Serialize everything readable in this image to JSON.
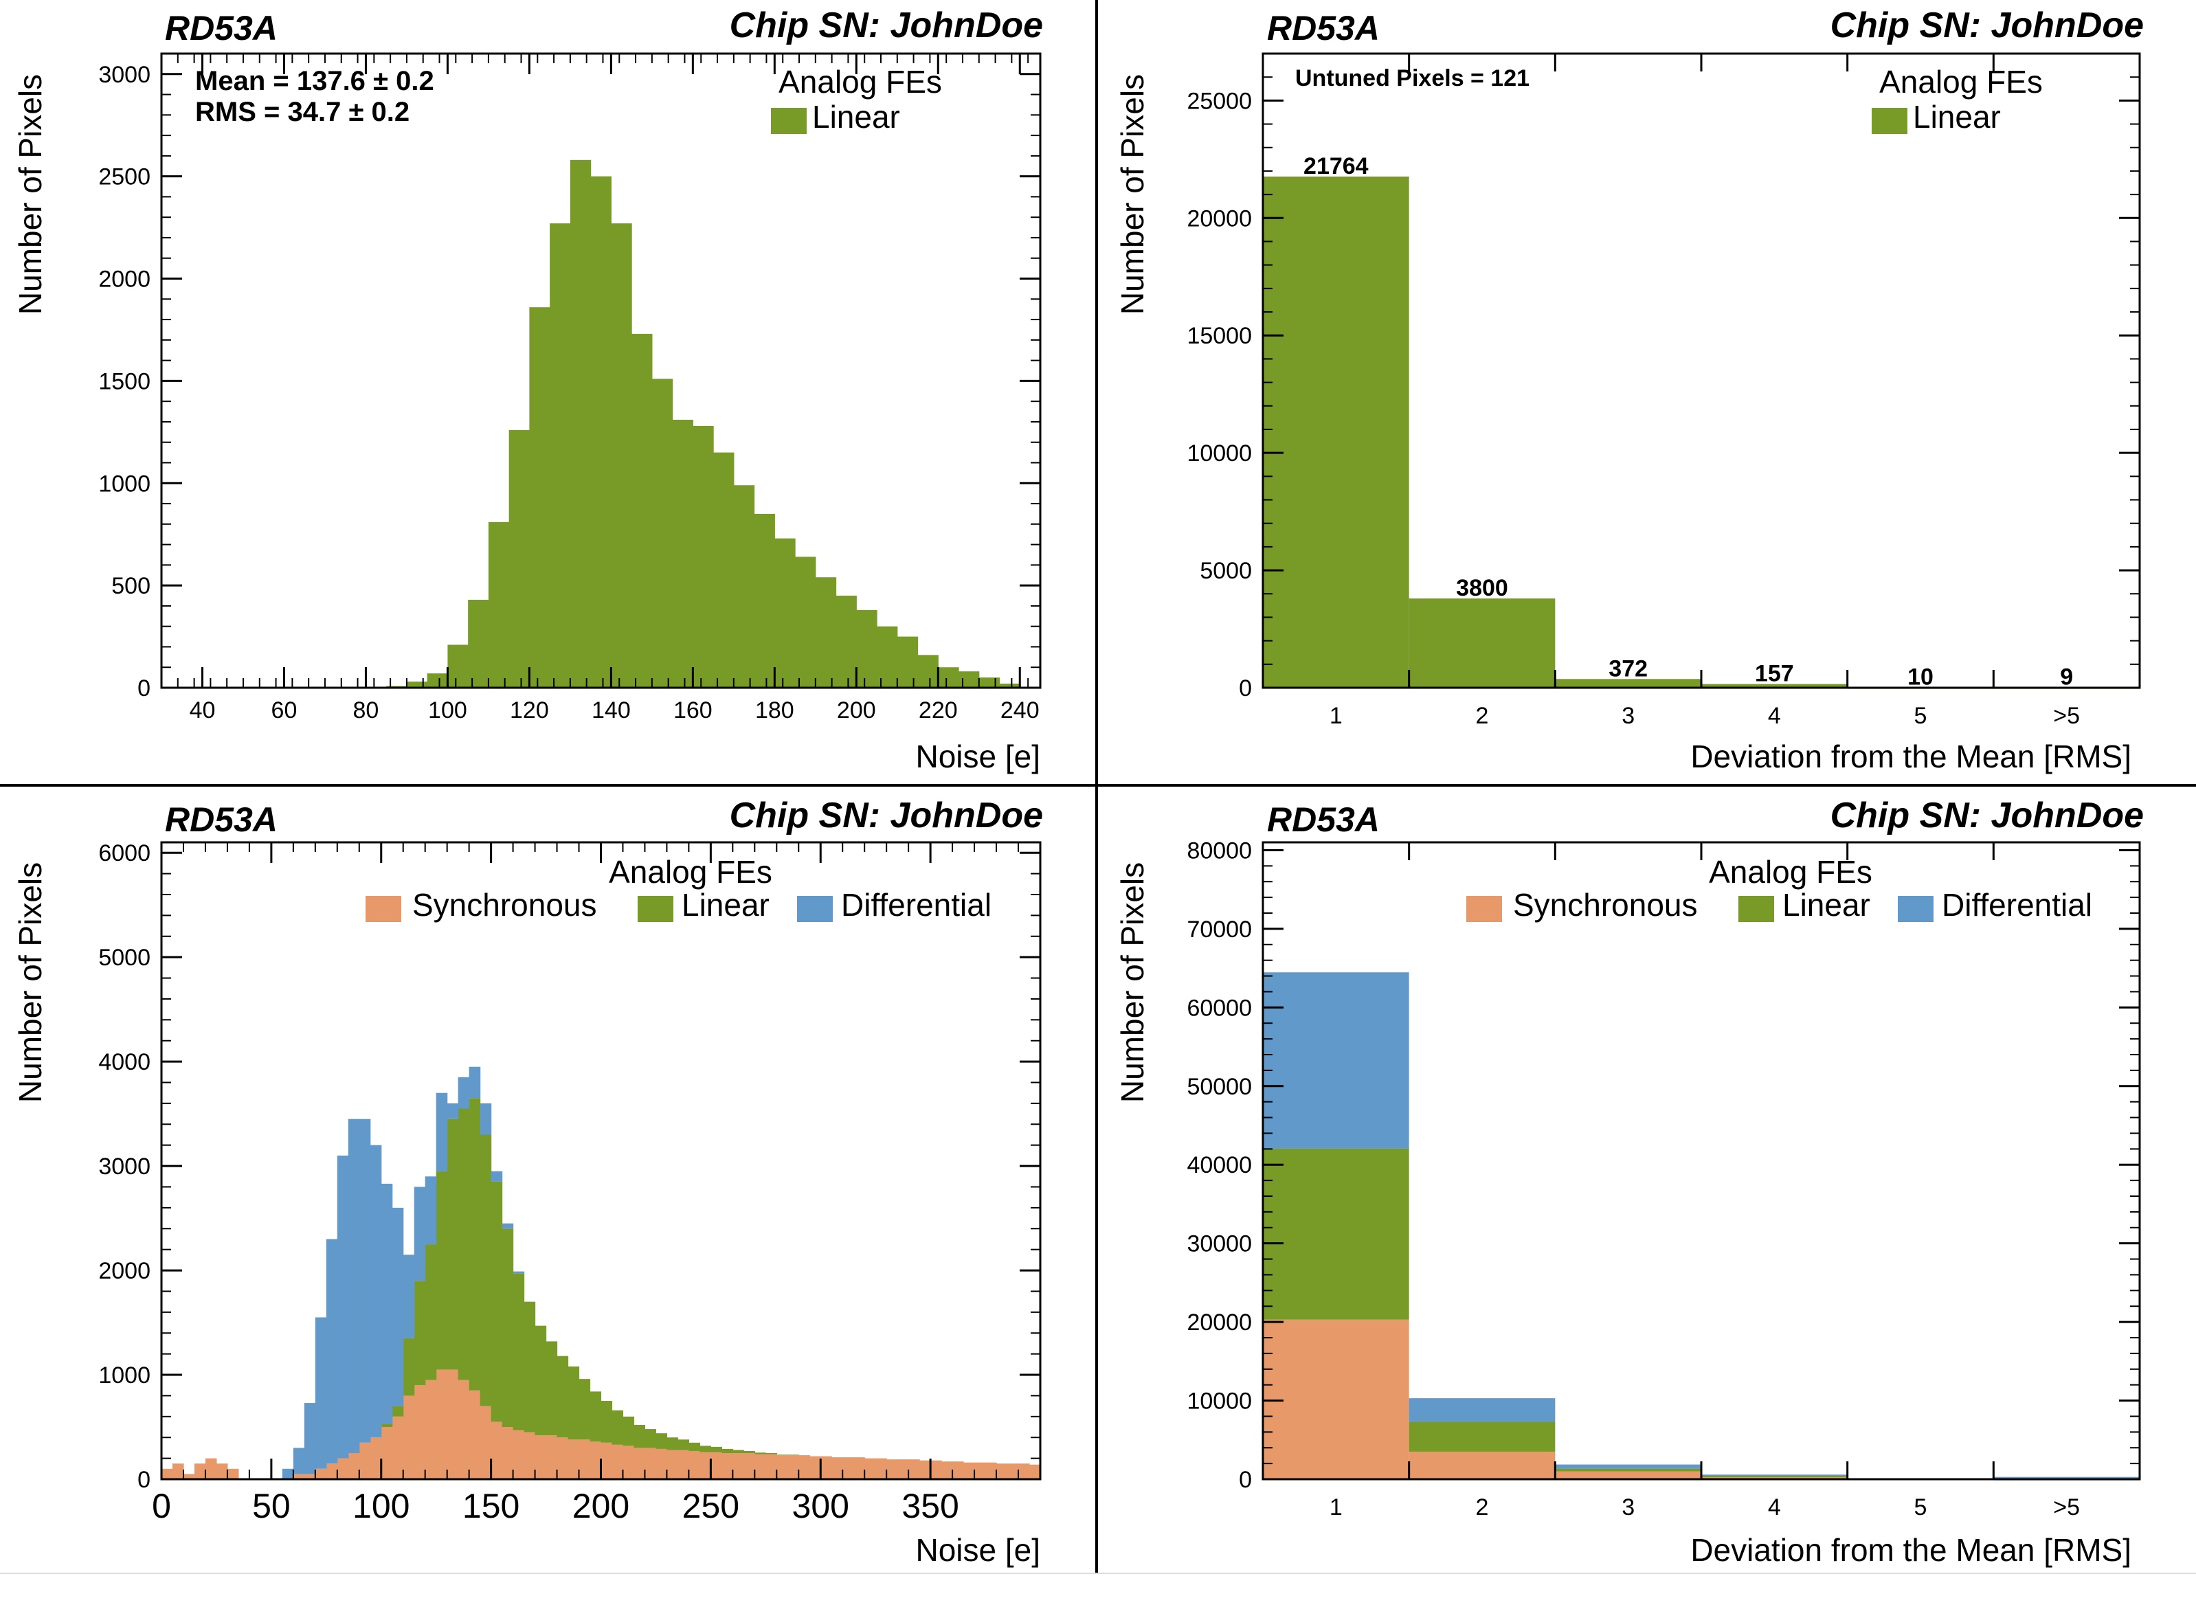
{
  "colors": {
    "synchronous": "#e8996a",
    "linear": "#789b28",
    "differential": "#6199cb"
  },
  "panels": [
    {
      "id": "p1",
      "rd_label": "RD53A",
      "chip_label": "Chip SN: JohnDoe",
      "legend_title": "Analog FEs",
      "legend": [
        "Linear"
      ],
      "stats": [
        "Mean = 137.6 ± 0.2",
        "RMS = 34.7 ± 0.2"
      ]
    },
    {
      "id": "p2",
      "rd_label": "RD53A",
      "chip_label": "Chip SN: JohnDoe",
      "legend_title": "Analog FEs",
      "legend": [
        "Linear"
      ],
      "note": "Untuned Pixels = 121"
    },
    {
      "id": "p3",
      "rd_label": "RD53A",
      "chip_label": "Chip SN: JohnDoe",
      "legend_title": "Analog FEs",
      "legend": [
        "Synchronous",
        "Linear",
        "Differential"
      ]
    },
    {
      "id": "p4",
      "rd_label": "RD53A",
      "chip_label": "Chip SN: JohnDoe",
      "legend_title": "Analog FEs",
      "legend": [
        "Synchronous",
        "Linear",
        "Differential"
      ]
    }
  ],
  "chart_data": [
    {
      "type": "bar",
      "xlabel": "Noise [e]",
      "ylabel": "Number of Pixels",
      "xlim": [
        30,
        245
      ],
      "ylim": [
        0,
        3100
      ],
      "xticks": [
        40,
        60,
        80,
        100,
        120,
        140,
        160,
        180,
        200,
        220,
        240
      ],
      "yticks": [
        0,
        500,
        1000,
        1500,
        2000,
        2500,
        3000
      ],
      "bin_start": 30,
      "bin_width": 5,
      "series": [
        {
          "name": "Linear",
          "color": "linear",
          "values": [
            0,
            0,
            0,
            0,
            0,
            0,
            0,
            0,
            0,
            0,
            5,
            8,
            30,
            70,
            210,
            430,
            810,
            1260,
            1860,
            2270,
            2580,
            2500,
            2270,
            1730,
            1510,
            1310,
            1280,
            1150,
            990,
            850,
            730,
            640,
            540,
            450,
            380,
            300,
            250,
            160,
            100,
            80,
            50,
            20,
            5
          ]
        }
      ]
    },
    {
      "type": "bar",
      "xlabel": "Deviation from the Mean [RMS]",
      "ylabel": "Number of Pixels",
      "categories": [
        "1",
        "2",
        "3",
        "4",
        "5",
        ">5"
      ],
      "ylim": [
        0,
        27000
      ],
      "yticks": [
        0,
        5000,
        10000,
        15000,
        20000,
        25000
      ],
      "series": [
        {
          "name": "Linear",
          "color": "linear",
          "values": [
            21764,
            3800,
            372,
            157,
            10,
            9
          ]
        }
      ],
      "data_labels": [
        "21764",
        "3800",
        "372",
        "157",
        "10",
        "9"
      ]
    },
    {
      "type": "bar",
      "stacked": true,
      "xlabel": "Noise [e]",
      "ylabel": "Number of Pixels",
      "xlim": [
        0,
        400
      ],
      "ylim": [
        0,
        6100
      ],
      "xticks": [
        0,
        50,
        100,
        150,
        200,
        250,
        300,
        350
      ],
      "yticks": [
        0,
        1000,
        2000,
        3000,
        4000,
        5000,
        6000
      ],
      "bin_start": 0,
      "bin_width": 5,
      "series": [
        {
          "name": "Synchronous",
          "color": "synchronous",
          "values": [
            100,
            150,
            50,
            150,
            200,
            150,
            100,
            0,
            0,
            0,
            0,
            0,
            50,
            50,
            100,
            150,
            200,
            250,
            350,
            400,
            500,
            600,
            800,
            900,
            950,
            1050,
            1050,
            950,
            850,
            700,
            550,
            500,
            470,
            450,
            420,
            420,
            400,
            380,
            380,
            360,
            350,
            330,
            320,
            300,
            300,
            290,
            280,
            280,
            270,
            260,
            260,
            250,
            250,
            250,
            240,
            240,
            230,
            230,
            230,
            220,
            220,
            210,
            210,
            210,
            200,
            200,
            190,
            190,
            190,
            180,
            180,
            170,
            170,
            160,
            160,
            160,
            150,
            150,
            150,
            140
          ]
        },
        {
          "name": "Linear",
          "color": "linear",
          "values": [
            0,
            0,
            0,
            0,
            0,
            0,
            0,
            0,
            0,
            0,
            0,
            0,
            0,
            0,
            0,
            0,
            0,
            0,
            0,
            0,
            30,
            100,
            550,
            1000,
            1300,
            1900,
            2400,
            2600,
            2800,
            2600,
            2300,
            1900,
            1500,
            1250,
            1050,
            900,
            780,
            700,
            580,
            480,
            400,
            330,
            280,
            220,
            180,
            150,
            120,
            100,
            80,
            60,
            50,
            40,
            30,
            20,
            15,
            10,
            5,
            5,
            0,
            0,
            0,
            0,
            0,
            0,
            0,
            0,
            0,
            0,
            0,
            0,
            0,
            0,
            0,
            0,
            0,
            0,
            0,
            0,
            0,
            0
          ]
        },
        {
          "name": "Differential",
          "color": "differential",
          "values": [
            0,
            0,
            0,
            0,
            0,
            0,
            0,
            0,
            0,
            0,
            0,
            100,
            250,
            680,
            1450,
            2150,
            2900,
            3200,
            3100,
            2800,
            2300,
            1900,
            800,
            900,
            650,
            750,
            150,
            300,
            300,
            300,
            100,
            50,
            20,
            0,
            0,
            0,
            0,
            0,
            0,
            0,
            0,
            0,
            0,
            0,
            0,
            0,
            0,
            0,
            0,
            0,
            0,
            0,
            0,
            0,
            0,
            0,
            0,
            0,
            0,
            0,
            0,
            0,
            0,
            0,
            0,
            0,
            0,
            0,
            0,
            0,
            0,
            0,
            0,
            0,
            0,
            0,
            0,
            0,
            0,
            0
          ]
        }
      ]
    },
    {
      "type": "bar",
      "stacked": true,
      "xlabel": "Deviation from the Mean [RMS]",
      "ylabel": "Number of Pixels",
      "categories": [
        "1",
        "2",
        "3",
        "4",
        "5",
        ">5"
      ],
      "ylim": [
        0,
        81000
      ],
      "yticks": [
        0,
        10000,
        20000,
        30000,
        40000,
        50000,
        60000,
        70000,
        80000
      ],
      "series": [
        {
          "name": "Synchronous",
          "color": "synchronous",
          "values": [
            20300,
            3500,
            1000,
            280,
            40,
            30
          ]
        },
        {
          "name": "Linear",
          "color": "linear",
          "values": [
            21764,
            3800,
            372,
            157,
            10,
            9
          ]
        },
        {
          "name": "Differential",
          "color": "differential",
          "values": [
            22400,
            3000,
            500,
            150,
            30,
            250
          ]
        }
      ]
    }
  ]
}
